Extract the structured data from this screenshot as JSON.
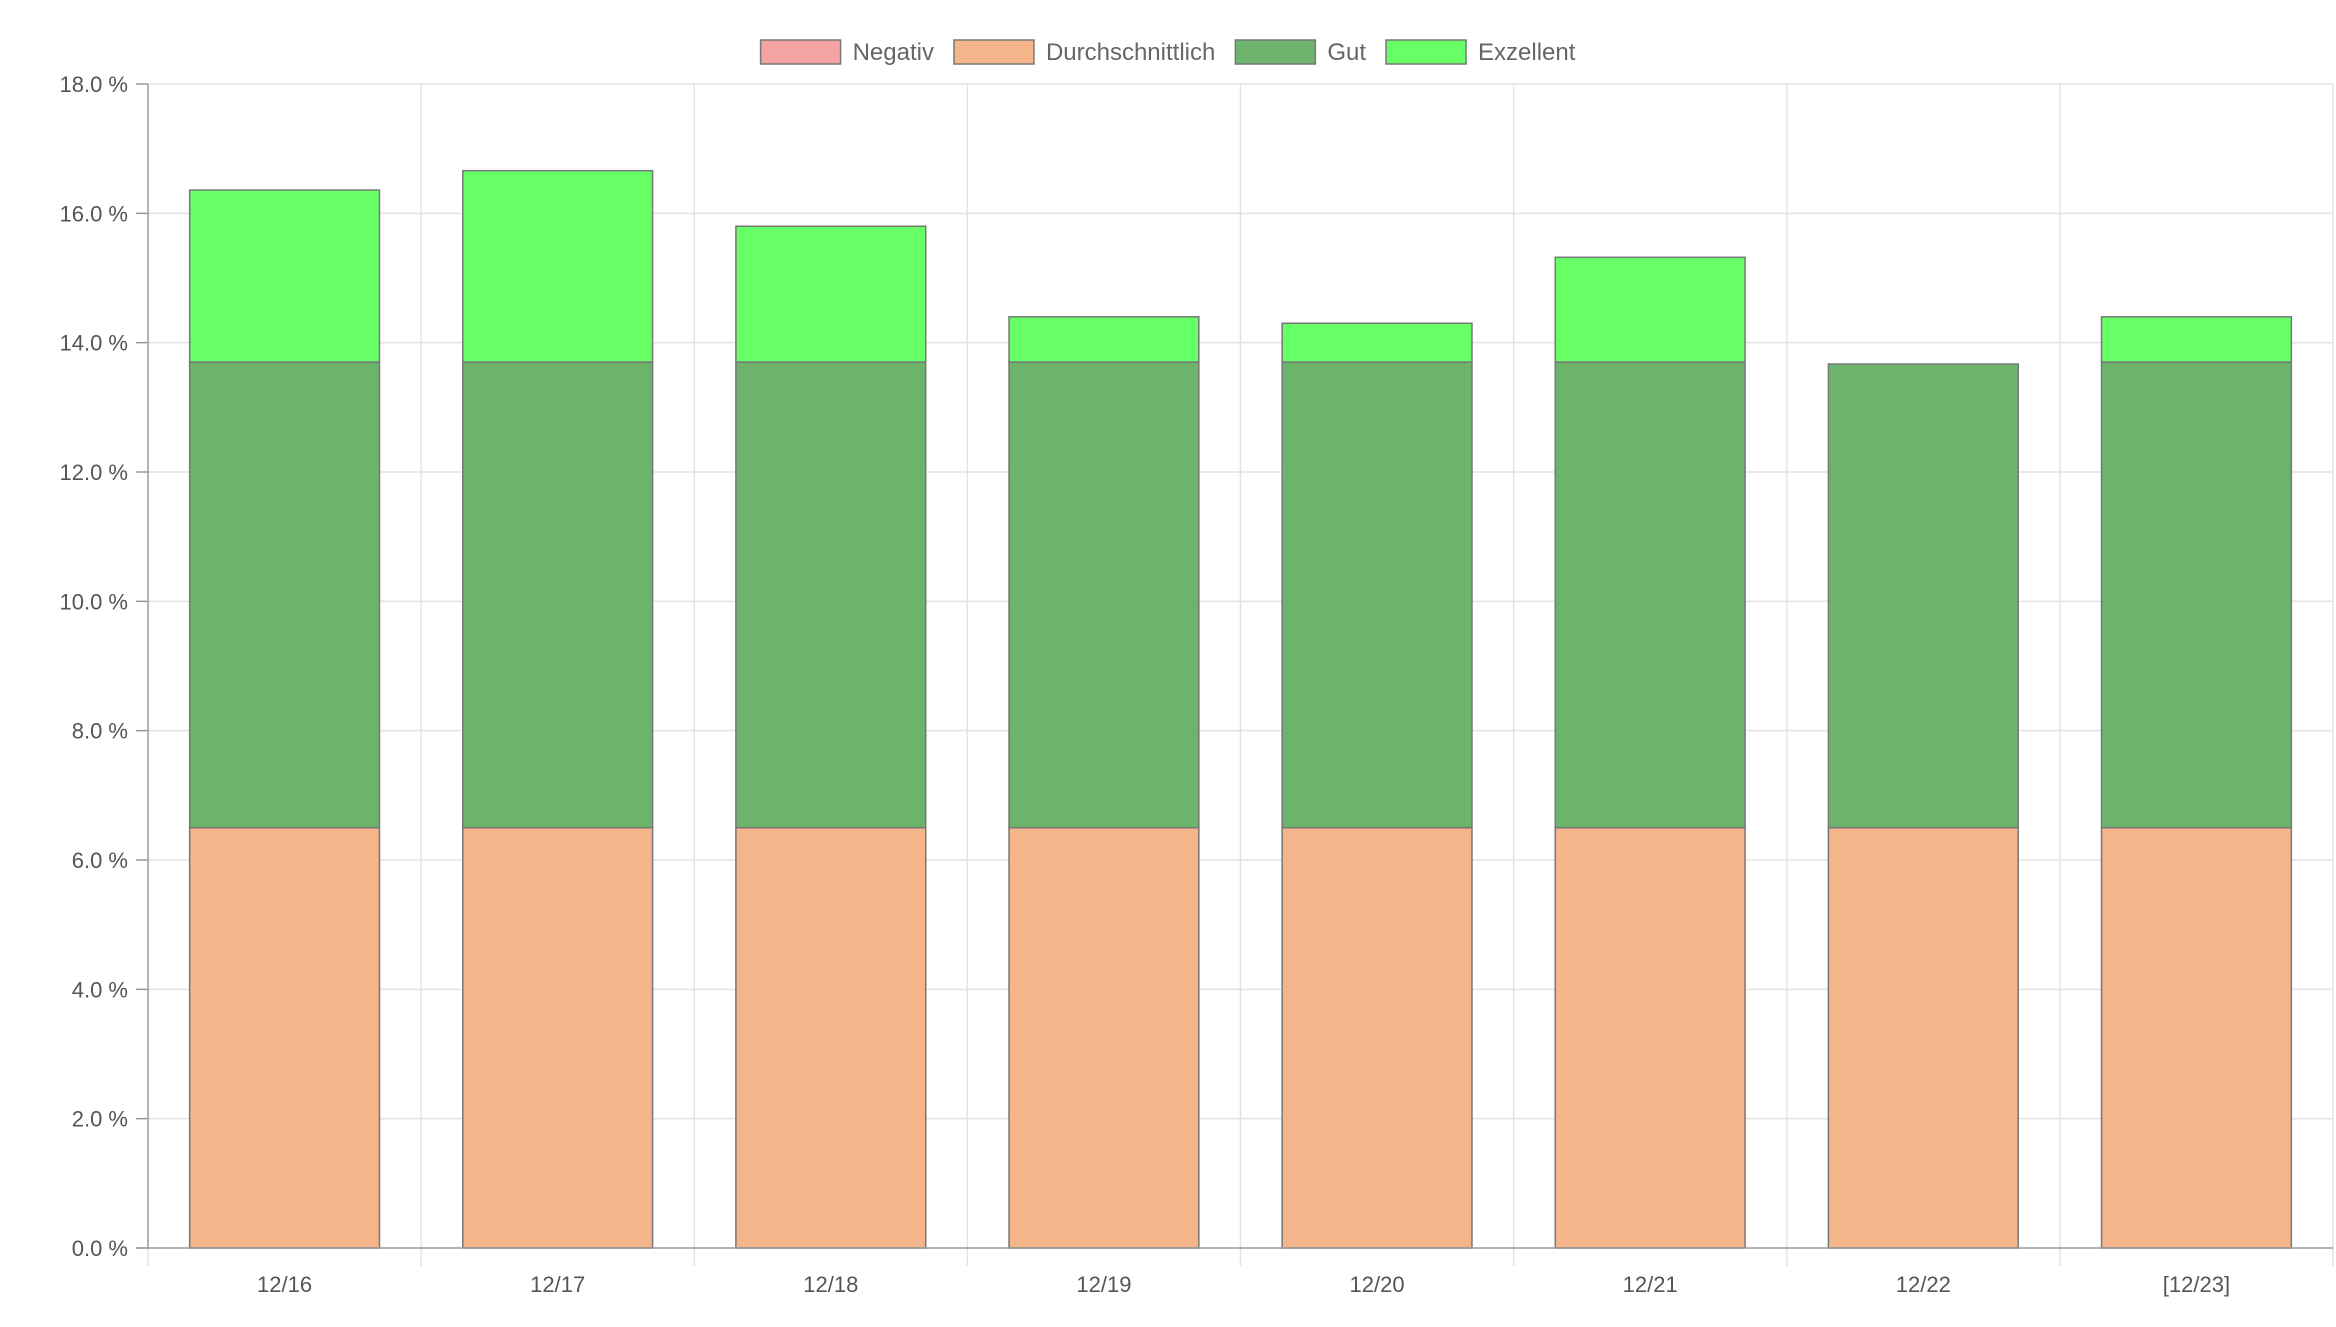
{
  "chart_data": {
    "type": "bar",
    "stacked": true,
    "categories": [
      "12/16",
      "12/17",
      "12/18",
      "12/19",
      "12/20",
      "12/21",
      "12/22",
      "[12/23]"
    ],
    "series": [
      {
        "name": "Negativ",
        "color": "#f4a3a3",
        "values": [
          0,
          0,
          0,
          0,
          0,
          0,
          0,
          0
        ]
      },
      {
        "name": "Durchschnittlich",
        "color": "#f4b58a",
        "values": [
          6.5,
          6.5,
          6.5,
          6.5,
          6.5,
          6.5,
          6.5,
          6.5
        ]
      },
      {
        "name": "Gut",
        "color": "#6cb46c",
        "values": [
          7.2,
          7.2,
          7.2,
          7.2,
          7.2,
          7.2,
          7.17,
          7.2
        ]
      },
      {
        "name": "Exzellent",
        "color": "#66ff66",
        "values": [
          2.66,
          2.96,
          2.1,
          0.7,
          0.6,
          1.62,
          0,
          0.7
        ]
      }
    ],
    "ylim": [
      0,
      18
    ],
    "y_ticks": [
      "0.0 %",
      "2.0 %",
      "4.0 %",
      "6.0 %",
      "8.0 %",
      "10.0 %",
      "12.0 %",
      "14.0 %",
      "16.0 %",
      "18.0 %"
    ],
    "grid": true,
    "legend_position": "top-center"
  }
}
